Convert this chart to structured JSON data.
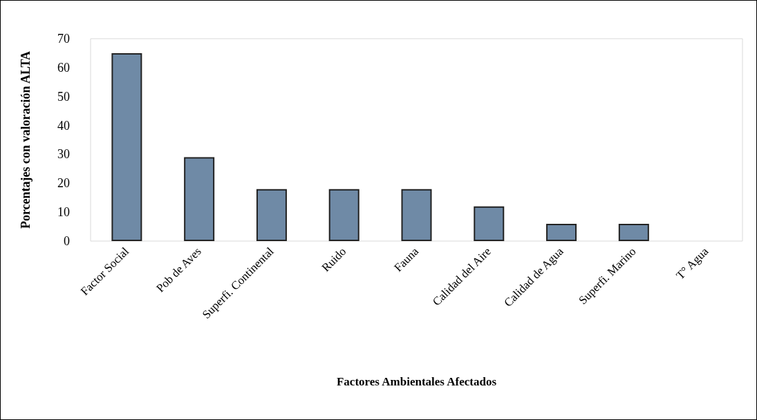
{
  "chart_data": {
    "type": "bar",
    "xlabel": "Factores Ambientales Afectados",
    "ylabel": "Porcentajes con valoración ALTA",
    "categories": [
      "Factor Social",
      "Pob de Aves",
      "Superfi. Continental",
      "Ruido",
      "Fauna",
      "Calidad del Aire",
      "Calidad de Agua",
      "Superfi. Marino",
      "T° Agua"
    ],
    "values": [
      65,
      29,
      18,
      18,
      18,
      12,
      6,
      6,
      0
    ],
    "color": "#6f8aa6",
    "ylim": [
      0,
      70
    ],
    "yticks": [
      0,
      10,
      20,
      30,
      40,
      50,
      60,
      70
    ],
    "grid": false
  }
}
